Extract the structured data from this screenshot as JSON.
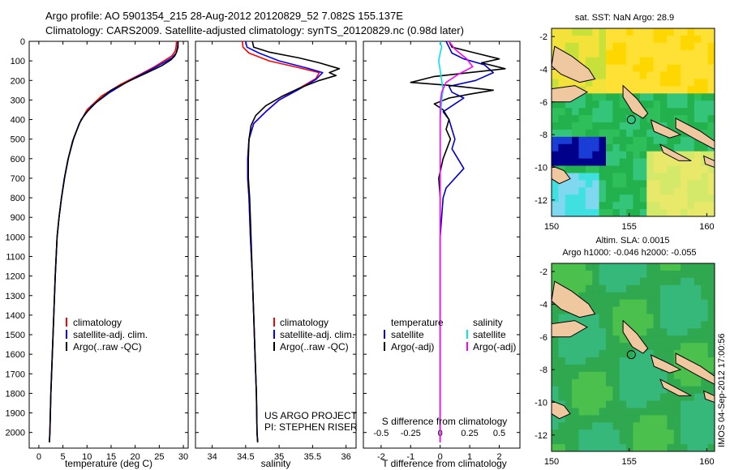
{
  "title": {
    "line1": "Argo profile: AO 5901354_215 28-Aug-2012 20120829_52 7.082S 155.137E",
    "line2": "Climatology: CARS2009. Satellite-adjusted climatology: synTS_20120829.nc (0.98d later)"
  },
  "colors": {
    "climatology": "#ff0000",
    "satellite": "#0000ff",
    "argo": "#000000",
    "temperature_diff_satellite": "#0000cc",
    "salinity_satellite": "#00e5ee",
    "salinity_argo": "#ff00ff",
    "land": "#f0c8a0"
  },
  "chart_data": [
    {
      "type": "line",
      "name": "temperature-profile",
      "xlabel": "temperature (deg C)",
      "ylabel": "",
      "xlim": [
        -2,
        31
      ],
      "ylim": [
        2080,
        0
      ],
      "xticks": [
        0,
        5,
        10,
        15,
        20,
        25,
        30
      ],
      "yticks": [
        0,
        100,
        200,
        300,
        400,
        500,
        600,
        700,
        800,
        900,
        1000,
        1100,
        1200,
        1300,
        1400,
        1500,
        1600,
        1700,
        1800,
        1900,
        2000
      ],
      "legend": {
        "placement": "lower-center",
        "items": [
          "climatology",
          "satellite-adj. clim.",
          "Argo(..raw -QC)"
        ]
      },
      "series": [
        {
          "name": "climatology",
          "color": "#ff0000",
          "points": [
            [
              28.6,
              0
            ],
            [
              28.5,
              25
            ],
            [
              28.3,
              50
            ],
            [
              27.6,
              75
            ],
            [
              26,
              100
            ],
            [
              24,
              130
            ],
            [
              21,
              170
            ],
            [
              17,
              220
            ],
            [
              13,
              280
            ],
            [
              10,
              350
            ],
            [
              8.4,
              420
            ],
            [
              7.2,
              500
            ],
            [
              6.1,
              600
            ],
            [
              5.3,
              700
            ],
            [
              4.7,
              800
            ],
            [
              4.2,
              900
            ],
            [
              3.8,
              1000
            ],
            [
              3.4,
              1200
            ],
            [
              3.1,
              1400
            ],
            [
              2.8,
              1600
            ],
            [
              2.5,
              1800
            ],
            [
              2.3,
              2000
            ],
            [
              2.2,
              2050
            ]
          ]
        },
        {
          "name": "satellite-adj. clim.",
          "color": "#0000ff",
          "points": [
            [
              28.9,
              0
            ],
            [
              28.8,
              30
            ],
            [
              28.5,
              60
            ],
            [
              27.6,
              85
            ],
            [
              25.5,
              115
            ],
            [
              22.5,
              155
            ],
            [
              18.5,
              205
            ],
            [
              14.5,
              265
            ],
            [
              11,
              330
            ],
            [
              8.8,
              400
            ],
            [
              7.3,
              490
            ],
            [
              6.2,
              590
            ],
            [
              5.4,
              690
            ],
            [
              4.7,
              800
            ],
            [
              4.2,
              900
            ],
            [
              3.8,
              1000
            ],
            [
              3.4,
              1200
            ],
            [
              3.1,
              1400
            ],
            [
              2.8,
              1600
            ],
            [
              2.5,
              1800
            ],
            [
              2.3,
              2000
            ],
            [
              2.2,
              2050
            ]
          ]
        },
        {
          "name": "Argo(..raw -QC)",
          "color": "#000000",
          "points": [
            [
              28.9,
              0
            ],
            [
              28.9,
              30
            ],
            [
              28.6,
              55
            ],
            [
              28.2,
              75
            ],
            [
              27.4,
              95
            ],
            [
              25.5,
              125
            ],
            [
              22.5,
              160
            ],
            [
              19,
              200
            ],
            [
              15,
              250
            ],
            [
              12,
              310
            ],
            [
              9.6,
              370
            ],
            [
              8.4,
              420
            ],
            [
              7,
              510
            ],
            [
              6,
              610
            ],
            [
              5.3,
              700
            ],
            [
              4.7,
              800
            ],
            [
              4.2,
              900
            ],
            [
              3.8,
              1000
            ],
            [
              3.4,
              1200
            ],
            [
              3.1,
              1400
            ],
            [
              2.8,
              1600
            ],
            [
              2.5,
              1800
            ],
            [
              2.3,
              2000
            ],
            [
              2.2,
              2050
            ]
          ]
        }
      ]
    },
    {
      "type": "line",
      "name": "salinity-profile",
      "xlabel": "salinity",
      "xlim": [
        33.75,
        36.15
      ],
      "ylim": [
        2080,
        0
      ],
      "xticks": [
        34,
        34.5,
        35,
        35.5,
        36
      ],
      "legend": {
        "placement": "lower-center",
        "items": [
          "climatology",
          "satellite-adj. clim.",
          "Argo(..raw -QC)"
        ]
      },
      "annotation": {
        "line1": "US ARGO PROJECT",
        "line2": "PI: STEPHEN RISER"
      },
      "series": [
        {
          "name": "climatology",
          "color": "#ff0000",
          "points": [
            [
              34.45,
              0
            ],
            [
              34.46,
              30
            ],
            [
              34.55,
              60
            ],
            [
              34.85,
              100
            ],
            [
              35.3,
              135
            ],
            [
              35.6,
              160
            ],
            [
              35.55,
              190
            ],
            [
              35.3,
              240
            ],
            [
              35,
              300
            ],
            [
              34.8,
              360
            ],
            [
              34.62,
              420
            ],
            [
              34.55,
              500
            ],
            [
              34.53,
              600
            ],
            [
              34.53,
              700
            ],
            [
              34.55,
              800
            ],
            [
              34.57,
              1000
            ],
            [
              34.6,
              1200
            ],
            [
              34.62,
              1400
            ],
            [
              34.64,
              1600
            ],
            [
              34.66,
              1800
            ],
            [
              34.67,
              2000
            ],
            [
              34.68,
              2050
            ]
          ]
        },
        {
          "name": "satellite-adj. clim.",
          "color": "#0000ff",
          "points": [
            [
              34.5,
              0
            ],
            [
              34.52,
              30
            ],
            [
              34.7,
              60
            ],
            [
              35.0,
              100
            ],
            [
              35.4,
              135
            ],
            [
              35.65,
              160
            ],
            [
              35.55,
              195
            ],
            [
              35.3,
              245
            ],
            [
              35,
              300
            ],
            [
              34.8,
              360
            ],
            [
              34.62,
              420
            ],
            [
              34.55,
              500
            ],
            [
              34.53,
              600
            ],
            [
              34.53,
              700
            ],
            [
              34.55,
              800
            ],
            [
              34.57,
              1000
            ],
            [
              34.6,
              1200
            ],
            [
              34.62,
              1400
            ],
            [
              34.64,
              1600
            ],
            [
              34.66,
              1800
            ],
            [
              34.67,
              2000
            ],
            [
              34.68,
              2050
            ]
          ]
        },
        {
          "name": "Argo(..raw -QC)",
          "color": "#000000",
          "points": [
            [
              34.6,
              0
            ],
            [
              34.62,
              30
            ],
            [
              34.85,
              55
            ],
            [
              35.3,
              85
            ],
            [
              35.6,
              110
            ],
            [
              35.9,
              140
            ],
            [
              35.75,
              160
            ],
            [
              35.85,
              175
            ],
            [
              35.6,
              200
            ],
            [
              35.3,
              240
            ],
            [
              35.05,
              280
            ],
            [
              34.8,
              330
            ],
            [
              34.65,
              380
            ],
            [
              34.58,
              430
            ],
            [
              34.55,
              500
            ],
            [
              34.54,
              600
            ],
            [
              34.54,
              700
            ],
            [
              34.56,
              800
            ],
            [
              34.58,
              1000
            ],
            [
              34.6,
              1200
            ],
            [
              34.62,
              1400
            ],
            [
              34.64,
              1600
            ],
            [
              34.66,
              1800
            ],
            [
              34.67,
              2000
            ],
            [
              34.68,
              2050
            ]
          ]
        }
      ]
    },
    {
      "type": "line",
      "name": "difference-profile",
      "xlabel": "T difference from climatology",
      "top_axis_label": "S difference from climatology",
      "xlim": [
        -2.6,
        2.7
      ],
      "ylim": [
        2080,
        0
      ],
      "xticks": [
        -2,
        -1,
        0,
        1,
        2
      ],
      "top_xticks": [
        "-0.5",
        "-0.25",
        "0",
        "0.25",
        "0.5"
      ],
      "legend": {
        "placement": "lower-center",
        "temperature_header": "temperature",
        "salinity_header": "salinity",
        "items": [
          {
            "label": "satellite",
            "group": "temperature",
            "color": "#0000cc"
          },
          {
            "label": "Argo(-adj)",
            "group": "temperature",
            "color": "#000000"
          },
          {
            "label": "satellite",
            "group": "salinity",
            "color": "#00e5ee"
          },
          {
            "label": "Argo(-adj)",
            "group": "salinity",
            "color": "#ff00ff"
          }
        ]
      },
      "series": [
        {
          "name": "temperature satellite",
          "color": "#0000cc",
          "points": [
            [
              0.2,
              0
            ],
            [
              0.3,
              30
            ],
            [
              0.4,
              60
            ],
            [
              0.8,
              90
            ],
            [
              1.5,
              120
            ],
            [
              1.8,
              160
            ],
            [
              1.2,
              200
            ],
            [
              0.3,
              230
            ],
            [
              0.4,
              260
            ],
            [
              0.8,
              290
            ],
            [
              0.5,
              320
            ],
            [
              0.1,
              360
            ],
            [
              0.3,
              400
            ],
            [
              0.4,
              450
            ],
            [
              0.5,
              500
            ],
            [
              0.4,
              550
            ],
            [
              0.6,
              600
            ],
            [
              0.8,
              650
            ],
            [
              0.5,
              700
            ],
            [
              0.2,
              750
            ],
            [
              0.1,
              800
            ],
            [
              0.05,
              900
            ],
            [
              0,
              1000
            ],
            [
              0,
              1200
            ],
            [
              0,
              1500
            ],
            [
              0,
              2050
            ]
          ]
        },
        {
          "name": "temperature Argo(-adj)",
          "color": "#000000",
          "points": [
            [
              0.3,
              0
            ],
            [
              0.4,
              30
            ],
            [
              1.2,
              60
            ],
            [
              2.0,
              90
            ],
            [
              1.4,
              110
            ],
            [
              2.2,
              140
            ],
            [
              1.0,
              160
            ],
            [
              -0.2,
              180
            ],
            [
              -1.0,
              210
            ],
            [
              0.3,
              225
            ],
            [
              1.8,
              250
            ],
            [
              1.0,
              270
            ],
            [
              0.3,
              290
            ],
            [
              -0.2,
              320
            ],
            [
              0.1,
              350
            ],
            [
              0.3,
              400
            ],
            [
              0.2,
              450
            ],
            [
              0.35,
              500
            ],
            [
              0.1,
              600
            ],
            [
              -0.05,
              700
            ],
            [
              0,
              800
            ],
            [
              0,
              900
            ],
            [
              0,
              1000
            ],
            [
              0,
              1200
            ],
            [
              0,
              1500
            ],
            [
              0,
              2050
            ]
          ]
        },
        {
          "name": "salinity satellite",
          "color": "#00e5ee",
          "points": [
            [
              0,
              0
            ],
            [
              0.05,
              30
            ],
            [
              0,
              60
            ],
            [
              -0.05,
              100
            ],
            [
              0,
              150
            ],
            [
              0.05,
              200
            ],
            [
              0.1,
              250
            ],
            [
              0.05,
              300
            ],
            [
              0,
              400
            ],
            [
              0,
              500
            ],
            [
              0,
              700
            ],
            [
              0,
              1000
            ],
            [
              0,
              1500
            ],
            [
              0,
              2050
            ]
          ]
        },
        {
          "name": "salinity Argo(-adj)",
          "color": "#ff00ff",
          "points": [
            [
              0.3,
              0
            ],
            [
              0.5,
              40
            ],
            [
              0.9,
              90
            ],
            [
              1.1,
              130
            ],
            [
              0.6,
              170
            ],
            [
              0.2,
              210
            ],
            [
              0.05,
              260
            ],
            [
              0,
              320
            ],
            [
              0,
              400
            ],
            [
              0,
              500
            ],
            [
              0,
              700
            ],
            [
              0,
              1000
            ],
            [
              0,
              1500
            ],
            [
              0,
              2050
            ]
          ]
        }
      ]
    },
    {
      "type": "heatmap",
      "name": "sst-map",
      "title": "sat. SST: NaN Argo: 28.9",
      "xlim": [
        150,
        160.5
      ],
      "ylim": [
        -13,
        -1.5
      ],
      "xticks": [
        150,
        155,
        160
      ],
      "yticks": [
        -2,
        -4,
        -6,
        -8,
        -10,
        -12
      ],
      "marker": {
        "lon": 155.137,
        "lat": -7.082
      }
    },
    {
      "type": "heatmap",
      "name": "sla-map",
      "title": "Altim. SLA: 0.0015",
      "subtitle": "Argo h1000: -0.046 h2000: -0.055",
      "xlim": [
        150,
        160.5
      ],
      "ylim": [
        -13,
        -1.5
      ],
      "xticks": [
        150,
        155,
        160
      ],
      "yticks": [
        -2,
        -4,
        -6,
        -8,
        -10,
        -12
      ],
      "marker": {
        "lon": 155.137,
        "lat": -7.082
      }
    }
  ],
  "footer": {
    "credit": "IMOS 04-Sep-2012 17:00:56"
  }
}
